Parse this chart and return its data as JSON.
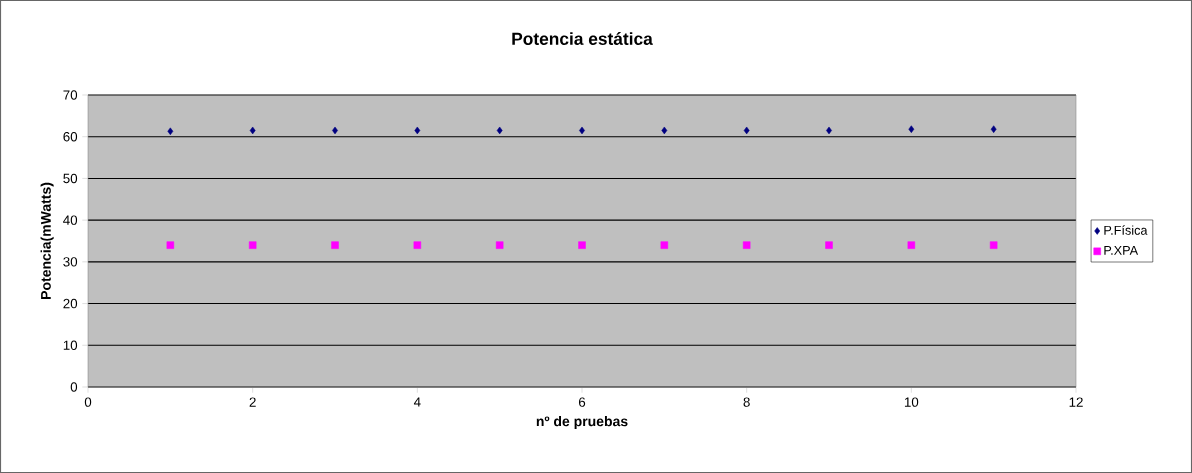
{
  "chart_data": {
    "type": "scatter",
    "title": "Potencia estática",
    "xlabel": "nº de pruebas",
    "ylabel": "Potencia(mWatts)",
    "x": [
      1,
      2,
      3,
      4,
      5,
      6,
      7,
      8,
      9,
      10,
      11
    ],
    "series": [
      {
        "name": "P.Física",
        "color": "#000080",
        "marker": "diamond",
        "values": [
          61.3,
          61.5,
          61.5,
          61.5,
          61.5,
          61.5,
          61.5,
          61.5,
          61.5,
          61.8,
          61.8
        ]
      },
      {
        "name": "P.XPA",
        "color": "#ff00ff",
        "marker": "square",
        "values": [
          34,
          34,
          34,
          34,
          34,
          34,
          34,
          34,
          34,
          34,
          34
        ]
      }
    ],
    "xlim": [
      0,
      12
    ],
    "xticks": [
      0,
      2,
      4,
      6,
      8,
      10,
      12
    ],
    "ylim": [
      0,
      70
    ],
    "yticks": [
      0,
      10,
      20,
      30,
      40,
      50,
      60,
      70
    ],
    "grid": "y",
    "legend": "right"
  }
}
